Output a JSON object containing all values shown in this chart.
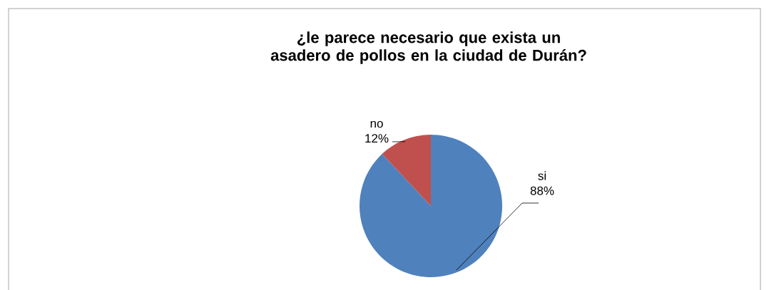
{
  "chart_data": {
    "type": "pie",
    "title": "¿le parece necesario que exista un asadero de pollos en la ciudad de Durán?",
    "categories": [
      "si",
      "no"
    ],
    "values": [
      88,
      12
    ],
    "value_labels": [
      "88%",
      "12%"
    ],
    "colors": [
      "#4f81bd",
      "#c0504d"
    ]
  }
}
